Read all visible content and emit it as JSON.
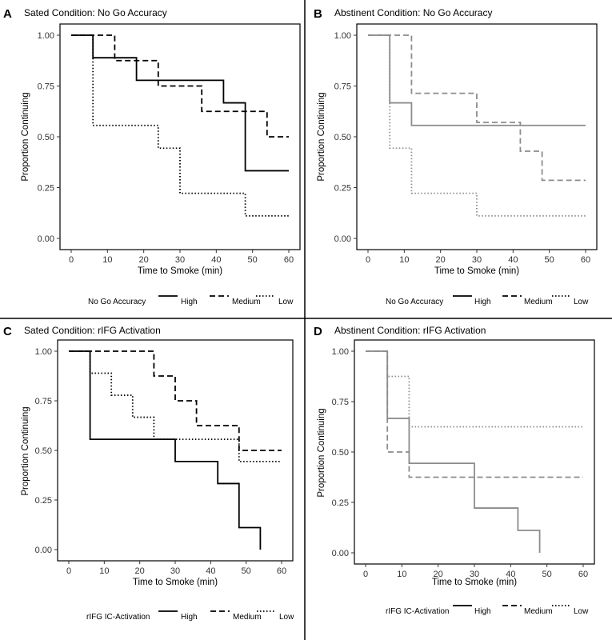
{
  "chart_data": [
    {
      "type": "line",
      "step": true,
      "panel_letter": "A",
      "title": "Sated Condition: No Go Accuracy",
      "xlabel": "Time to Smoke (min)",
      "ylabel": "Proportion Continuing",
      "xlim": [
        0,
        60
      ],
      "ylim": [
        0,
        1
      ],
      "x_ticks": [
        "0",
        "10",
        "20",
        "30",
        "40",
        "50",
        "60"
      ],
      "y_ticks": [
        "0.00",
        "0.25",
        "0.50",
        "0.75",
        "1.00"
      ],
      "line_color": "#000000",
      "legend_title": "No Go Accuracy",
      "series": [
        {
          "name": "High",
          "style": "solid",
          "x": [
            0,
            6,
            18,
            42,
            48,
            60
          ],
          "y": [
            1.0,
            0.889,
            0.778,
            0.667,
            0.333,
            0.333
          ]
        },
        {
          "name": "Medium",
          "style": "dashed",
          "x": [
            0,
            12,
            24,
            36,
            54,
            60
          ],
          "y": [
            1.0,
            0.875,
            0.75,
            0.625,
            0.5,
            0.5
          ]
        },
        {
          "name": "Low",
          "style": "dotted",
          "x": [
            0,
            6,
            24,
            30,
            48,
            60
          ],
          "y": [
            1.0,
            0.556,
            0.444,
            0.222,
            0.111,
            0.111
          ]
        }
      ]
    },
    {
      "type": "line",
      "step": true,
      "panel_letter": "B",
      "title": "Abstinent Condition: No Go Accuracy",
      "xlabel": "Time to Smoke (min)",
      "ylabel": "Proportion Continuing",
      "xlim": [
        0,
        60
      ],
      "ylim": [
        0,
        1
      ],
      "x_ticks": [
        "0",
        "10",
        "20",
        "30",
        "40",
        "50",
        "60"
      ],
      "y_ticks": [
        "0.00",
        "0.25",
        "0.50",
        "0.75",
        "1.00"
      ],
      "line_color": "#8c8c8c",
      "legend_title": "No Go Accuracy",
      "series": [
        {
          "name": "High",
          "style": "solid",
          "x": [
            0,
            6,
            12,
            60
          ],
          "y": [
            1.0,
            0.667,
            0.556,
            0.556
          ]
        },
        {
          "name": "Medium",
          "style": "dashed",
          "x": [
            0,
            12,
            30,
            42,
            48,
            60
          ],
          "y": [
            1.0,
            0.714,
            0.571,
            0.429,
            0.286,
            0.286
          ]
        },
        {
          "name": "Low",
          "style": "dotted",
          "x": [
            0,
            6,
            12,
            30,
            60
          ],
          "y": [
            1.0,
            0.444,
            0.222,
            0.111,
            0.111
          ]
        }
      ]
    },
    {
      "type": "line",
      "step": true,
      "panel_letter": "C",
      "title": "Sated Condition: rIFG Activation",
      "xlabel": "Time to Smoke (min)",
      "ylabel": "Proportion Continuing",
      "xlim": [
        0,
        60
      ],
      "ylim": [
        0,
        1
      ],
      "x_ticks": [
        "0",
        "10",
        "20",
        "30",
        "40",
        "50",
        "60"
      ],
      "y_ticks": [
        "0.00",
        "0.25",
        "0.50",
        "0.75",
        "1.00"
      ],
      "line_color": "#000000",
      "legend_title": "rIFG IC-Activation",
      "series": [
        {
          "name": "High",
          "style": "solid",
          "x": [
            0,
            6,
            30,
            42,
            48,
            54
          ],
          "y": [
            1.0,
            0.556,
            0.444,
            0.333,
            0.111,
            0.0
          ]
        },
        {
          "name": "Medium",
          "style": "dashed",
          "x": [
            0,
            24,
            30,
            36,
            48,
            60
          ],
          "y": [
            1.0,
            0.875,
            0.75,
            0.625,
            0.5,
            0.5
          ]
        },
        {
          "name": "Low",
          "style": "dotted",
          "x": [
            0,
            6,
            12,
            18,
            24,
            48,
            60
          ],
          "y": [
            1.0,
            0.889,
            0.778,
            0.667,
            0.556,
            0.444,
            0.444
          ]
        }
      ]
    },
    {
      "type": "line",
      "step": true,
      "panel_letter": "D",
      "title": "Abstinent Condition: rIFG Activation",
      "xlabel": "Time to Smoke (min)",
      "ylabel": "Proportion Continuing",
      "xlim": [
        0,
        60
      ],
      "ylim": [
        0,
        1
      ],
      "x_ticks": [
        "0",
        "10",
        "20",
        "30",
        "40",
        "50",
        "60"
      ],
      "y_ticks": [
        "0.00",
        "0.25",
        "0.50",
        "0.75",
        "1.00"
      ],
      "line_color": "#8c8c8c",
      "legend_title": "rIFG IC-Activation",
      "series": [
        {
          "name": "High",
          "style": "solid",
          "x": [
            0,
            6,
            12,
            30,
            42,
            48
          ],
          "y": [
            1.0,
            0.667,
            0.444,
            0.222,
            0.111,
            0.0
          ]
        },
        {
          "name": "Medium",
          "style": "dashed",
          "x": [
            0,
            6,
            12,
            60
          ],
          "y": [
            1.0,
            0.5,
            0.375,
            0.375
          ]
        },
        {
          "name": "Low",
          "style": "dotted",
          "x": [
            0,
            6,
            12,
            60
          ],
          "y": [
            1.0,
            0.875,
            0.625,
            0.625
          ]
        }
      ]
    }
  ]
}
